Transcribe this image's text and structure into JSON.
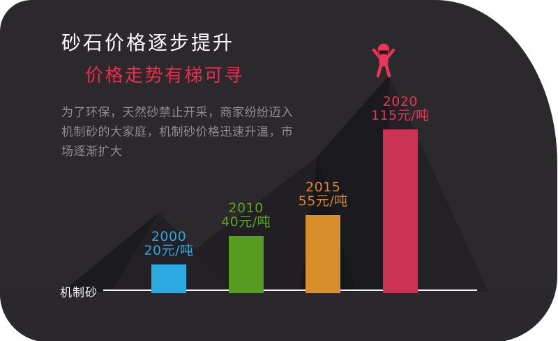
{
  "header": {
    "title": "砂石价格逐步提升",
    "subtitle": "价格走势有梯可寻",
    "description": "为了环保，天然砂禁止开采，商家纷纷迈入机制砂的大家庭，机制砂价格迅速升温，市场逐渐扩大"
  },
  "chart_data": {
    "type": "bar",
    "title": "砂石价格逐步提升",
    "subtitle": "价格走势有梯可寻",
    "xlabel": "机制砂",
    "ylabel": "",
    "unit": "元/吨",
    "categories": [
      "2000",
      "2010",
      "2015",
      "2020"
    ],
    "values": [
      20,
      40,
      55,
      115
    ],
    "grid": false,
    "legend": "none",
    "bars": [
      {
        "year": "2000",
        "value": 20,
        "price": "20元/吨",
        "bar_color": "#2ba9e0",
        "label_color": "#2ba9e0"
      },
      {
        "year": "2010",
        "value": 40,
        "price": "40元/吨",
        "bar_color": "#579b20",
        "label_color": "#5da321"
      },
      {
        "year": "2015",
        "value": 55,
        "price": "55元/吨",
        "bar_color": "#d88e2b",
        "label_color": "#d38a2e"
      },
      {
        "year": "2020",
        "value": 115,
        "price": "115元/吨",
        "bar_color": "#cb3352",
        "label_color": "#e93558"
      }
    ],
    "axis_label": "机制砂"
  },
  "colors": {
    "page_background": "#ffffff",
    "blob_background": "#2b292c",
    "accent_red": "#ea2c4e",
    "title_white": "#fbfbfb",
    "paragraph_gray": "#8f8c8e",
    "axis_white": "#f6f6f6"
  },
  "icons": {
    "person": "cheering-person-icon"
  }
}
